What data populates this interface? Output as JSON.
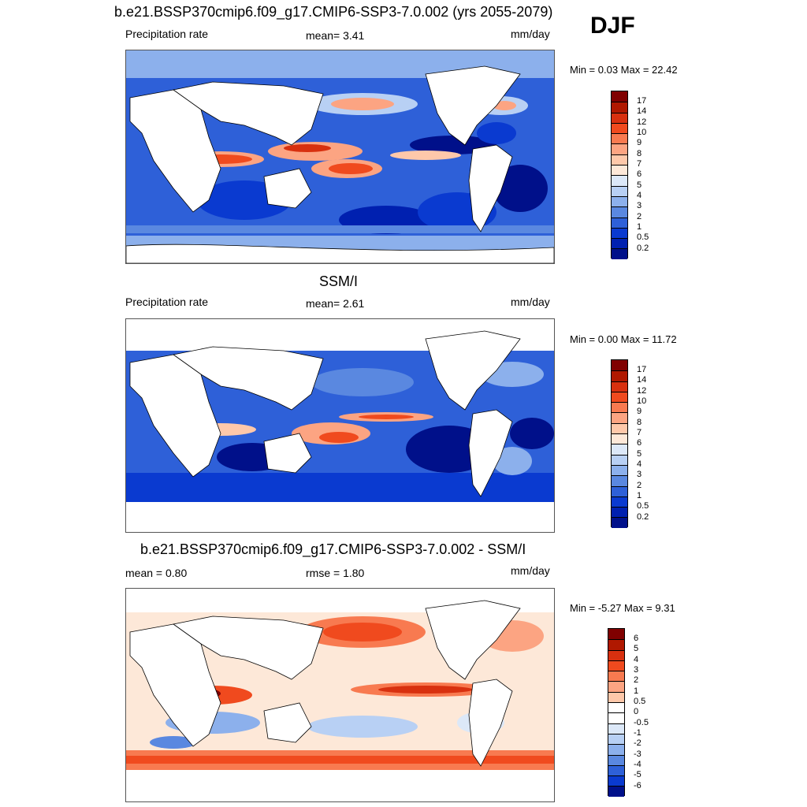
{
  "season": "DJF",
  "panels": [
    {
      "title": "b.e21.BSSP370cmip6.f09_g17.CMIP6-SSP3-7.0.002 (yrs 2055-2079)",
      "left_label": "Precipitation rate",
      "mid_label": "mean=   3.41",
      "right_label": "mm/day",
      "minmax": "Min =   0.03 Max =  22.42",
      "colorbar_labels": [
        "17",
        "14",
        "12",
        "10",
        "9",
        "8",
        "7",
        "6",
        "5",
        "4",
        "3",
        "2",
        "1",
        "0.5",
        "0.2"
      ]
    },
    {
      "title": "SSM/I",
      "left_label": "Precipitation rate",
      "mid_label": "mean=   2.61",
      "right_label": "mm/day",
      "minmax": "Min =   0.00 Max =  11.72",
      "colorbar_labels": [
        "17",
        "14",
        "12",
        "10",
        "9",
        "8",
        "7",
        "6",
        "5",
        "4",
        "3",
        "2",
        "1",
        "0.5",
        "0.2"
      ]
    },
    {
      "title": "b.e21.BSSP370cmip6.f09_g17.CMIP6-SSP3-7.0.002 - SSM/I",
      "left_label": "mean =   0.80",
      "mid_label": "rmse =   1.80",
      "right_label": "mm/day",
      "minmax": "Min =  -5.27 Max =   9.31",
      "colorbar_labels": [
        "6",
        "5",
        "4",
        "3",
        "2",
        "1",
        "0.5",
        "0",
        "-0.5",
        "-1",
        "-2",
        "-3",
        "-4",
        "-5",
        "-6"
      ]
    }
  ],
  "colors": {
    "precip_scale": [
      "#800000",
      "#b01800",
      "#d8300f",
      "#f04a1e",
      "#f87a50",
      "#fca482",
      "#fec8aa",
      "#fde8d8",
      "#dce8f8",
      "#b8d0f4",
      "#8cb0ec",
      "#5a88e0",
      "#2e60d8",
      "#0a3ad0",
      "#0020b0",
      "#00108a"
    ],
    "diff_scale": [
      "#800000",
      "#b01800",
      "#d8300f",
      "#f04a1e",
      "#f87a50",
      "#fca482",
      "#fec8aa",
      "#ffffff",
      "#ffffff",
      "#dce8f8",
      "#b8d0f4",
      "#8cb0ec",
      "#5a88e0",
      "#2e60d8",
      "#0a3ad0",
      "#00108a"
    ]
  }
}
